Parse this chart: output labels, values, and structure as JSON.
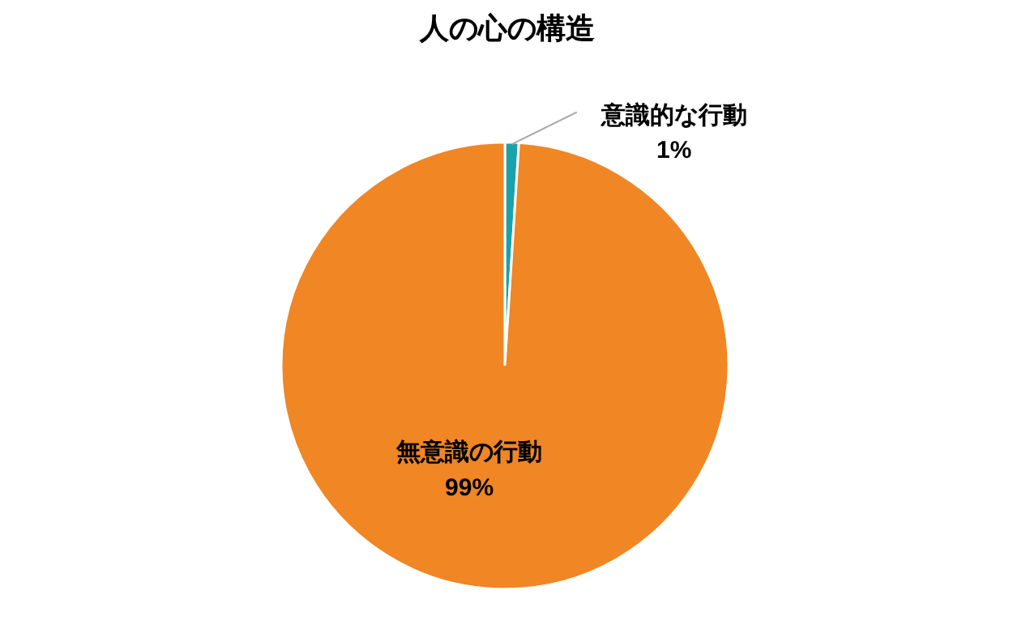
{
  "chart_data": {
    "type": "pie",
    "title": "人の心の構造",
    "categories": [
      "意識的な行動",
      "無意識の行動"
    ],
    "values": [
      1,
      99
    ],
    "colors": [
      "#1ba1a9",
      "#f08624"
    ],
    "value_labels": [
      "1%",
      "99%"
    ]
  }
}
